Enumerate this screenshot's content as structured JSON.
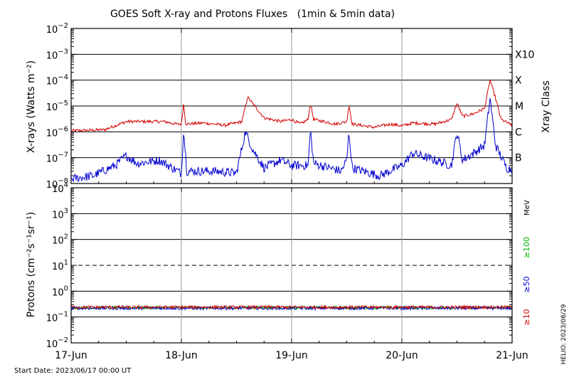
{
  "chart_data": {
    "type": "line",
    "title": "GOES Soft X-ray and Protons Fluxes   (1min & 5min data)",
    "x_tick_labels": [
      "17-Jun",
      "18-Jun",
      "19-Jun",
      "20-Jun",
      "21-Jun"
    ],
    "x_range_days": [
      0,
      4
    ],
    "start_date_label": "Start Date: 2023/06/17 00:00 UT",
    "credit": "HELIO: 2023/06/29",
    "colors": {
      "red": "#d40000",
      "blue": "#0000d0",
      "green": "#00b400",
      "grid": "#999999"
    },
    "xray_panel": {
      "ylabel": "X-rays (Watts m⁻²)",
      "scale": "log",
      "ylim": [
        1e-08,
        0.01
      ],
      "y_tick_exponents": [
        -8,
        -7,
        -6,
        -5,
        -4,
        -3,
        -2
      ],
      "class_title": "Xray Class",
      "class_labels": [
        {
          "label": "X10",
          "value": 0.001
        },
        {
          "label": "X",
          "value": 0.0001
        },
        {
          "label": "M",
          "value": 1e-05
        },
        {
          "label": "C",
          "value": 1e-06
        },
        {
          "label": "B",
          "value": 1e-07
        }
      ],
      "series": [
        {
          "color": "red",
          "points": [
            [
              0,
              1.1e-06
            ],
            [
              0.3,
              1.2e-06
            ],
            [
              0.5,
              2.5e-06
            ],
            [
              0.7,
              2.5e-06
            ],
            [
              0.85,
              2.5e-06
            ],
            [
              0.95,
              2e-06
            ],
            [
              1.0,
              2e-06
            ],
            [
              1.02,
              1.2e-05
            ],
            [
              1.04,
              2e-06
            ],
            [
              1.2,
              2.2e-06
            ],
            [
              1.4,
              1.8e-06
            ],
            [
              1.55,
              2.5e-06
            ],
            [
              1.6,
              2.2e-05
            ],
            [
              1.65,
              1.2e-05
            ],
            [
              1.75,
              3.5e-06
            ],
            [
              1.9,
              2.5e-06
            ],
            [
              2.0,
              3e-06
            ],
            [
              2.08,
              2e-06
            ],
            [
              2.15,
              3e-06
            ],
            [
              2.17,
              1.3e-05
            ],
            [
              2.2,
              3e-06
            ],
            [
              2.4,
              2e-06
            ],
            [
              2.5,
              2.5e-06
            ],
            [
              2.52,
              1.1e-05
            ],
            [
              2.55,
              2e-06
            ],
            [
              2.75,
              1.5e-06
            ],
            [
              2.9,
              2e-06
            ],
            [
              3.0,
              1.7e-06
            ],
            [
              3.1,
              2.2e-06
            ],
            [
              3.3,
              2e-06
            ],
            [
              3.45,
              3e-06
            ],
            [
              3.5,
              1.3e-05
            ],
            [
              3.55,
              4e-06
            ],
            [
              3.65,
              5e-06
            ],
            [
              3.75,
              8e-06
            ],
            [
              3.8,
              0.0001
            ],
            [
              3.85,
              2e-05
            ],
            [
              3.9,
              3e-06
            ],
            [
              4.0,
              1.8e-06
            ]
          ]
        },
        {
          "color": "blue",
          "points": [
            [
              0,
              1.5e-08
            ],
            [
              0.2,
              2e-08
            ],
            [
              0.4,
              5e-08
            ],
            [
              0.5,
              1.2e-07
            ],
            [
              0.6,
              6e-08
            ],
            [
              0.8,
              8e-08
            ],
            [
              1.0,
              2.5e-08
            ],
            [
              1.02,
              1.2e-06
            ],
            [
              1.05,
              3e-08
            ],
            [
              1.3,
              3e-08
            ],
            [
              1.5,
              2.5e-08
            ],
            [
              1.58,
              1e-06
            ],
            [
              1.65,
              2e-07
            ],
            [
              1.75,
              4e-08
            ],
            [
              1.9,
              8e-08
            ],
            [
              2.0,
              5e-08
            ],
            [
              2.15,
              5e-08
            ],
            [
              2.17,
              1.2e-06
            ],
            [
              2.2,
              6e-08
            ],
            [
              2.45,
              3e-08
            ],
            [
              2.5,
              8e-08
            ],
            [
              2.52,
              1e-06
            ],
            [
              2.55,
              4e-08
            ],
            [
              2.8,
              2e-08
            ],
            [
              3.0,
              5e-08
            ],
            [
              3.1,
              1.5e-07
            ],
            [
              3.3,
              8e-08
            ],
            [
              3.45,
              5e-08
            ],
            [
              3.5,
              1e-06
            ],
            [
              3.55,
              8e-08
            ],
            [
              3.65,
              1.5e-07
            ],
            [
              3.75,
              3e-07
            ],
            [
              3.8,
              2e-05
            ],
            [
              3.85,
              3e-07
            ],
            [
              3.95,
              4e-08
            ],
            [
              4.0,
              3.5e-08
            ]
          ]
        }
      ]
    },
    "proton_panel": {
      "ylabel": "Protons (cm⁻²s⁻¹sr⁻¹)",
      "scale": "log",
      "ylim": [
        0.01,
        10000
      ],
      "y_tick_exponents": [
        -2,
        -1,
        0,
        1,
        2,
        3,
        4
      ],
      "threshold_dashed": 10,
      "energy_unit": "MeV",
      "channels": [
        {
          "label": "≥100",
          "color": "green",
          "level": 0.23
        },
        {
          "label": "≥50",
          "color": "blue",
          "level": 0.22
        },
        {
          "label": "≥10",
          "color": "red",
          "level": 0.24
        }
      ]
    }
  }
}
